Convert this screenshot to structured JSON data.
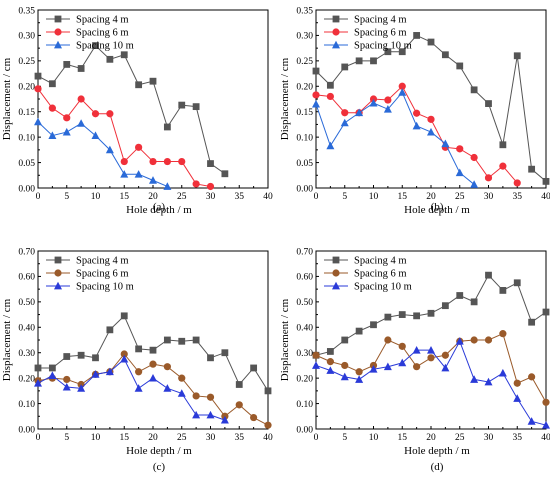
{
  "chart_data": [
    {
      "panel_label": "(a)",
      "type": "line",
      "xlabel": "Hole depth / m",
      "ylabel": "Displacement / cm",
      "xlim": [
        0,
        40
      ],
      "ylim": [
        0,
        0.35
      ],
      "xticks": [
        "0",
        "5",
        "10",
        "15",
        "20",
        "25",
        "30",
        "35",
        "40"
      ],
      "yticks": [
        "0.00",
        "0.05",
        "0.10",
        "0.15",
        "0.20",
        "0.25",
        "0.30",
        "0.35"
      ],
      "legend_position": "top-right",
      "series": [
        {
          "name": "Spacing 4 m",
          "color": "#555555",
          "marker": "square",
          "x": [
            0,
            2.5,
            5,
            7.5,
            10,
            12.5,
            15,
            17.5,
            20,
            22.5,
            25,
            27.5,
            30,
            32.5
          ],
          "y": [
            0.22,
            0.205,
            0.243,
            0.235,
            0.28,
            0.253,
            0.262,
            0.203,
            0.21,
            0.12,
            0.163,
            0.16,
            0.048,
            0.028
          ]
        },
        {
          "name": "Spacing 6 m",
          "color": "#f0303a",
          "marker": "circle",
          "x": [
            0,
            2.5,
            5,
            7.5,
            10,
            12.5,
            15,
            17.5,
            20,
            22.5,
            25,
            27.5,
            30
          ],
          "y": [
            0.195,
            0.157,
            0.138,
            0.175,
            0.146,
            0.146,
            0.052,
            0.08,
            0.052,
            0.052,
            0.052,
            0.008,
            0.003
          ]
        },
        {
          "name": "Spacing 10 m",
          "color": "#2a6ad8",
          "marker": "triangle",
          "x": [
            0,
            2.5,
            5,
            7.5,
            10,
            12.5,
            15,
            17.5,
            20,
            22.5
          ],
          "y": [
            0.13,
            0.103,
            0.11,
            0.127,
            0.103,
            0.075,
            0.027,
            0.027,
            0.015,
            0.003
          ]
        }
      ]
    },
    {
      "panel_label": "(b)",
      "type": "line",
      "xlabel": "Hole depth / m",
      "ylabel": "Displacement / cm",
      "xlim": [
        0,
        40
      ],
      "ylim": [
        0,
        0.35
      ],
      "xticks": [
        "0",
        "5",
        "10",
        "15",
        "20",
        "25",
        "30",
        "35",
        "40"
      ],
      "yticks": [
        "0.00",
        "0.05",
        "0.10",
        "0.15",
        "0.20",
        "0.25",
        "0.30",
        "0.35"
      ],
      "legend_position": "top-right",
      "series": [
        {
          "name": "Spacing 4 m",
          "color": "#555555",
          "marker": "square",
          "x": [
            0,
            2.5,
            5,
            7.5,
            10,
            12.5,
            15,
            17.5,
            20,
            22.5,
            25,
            27.5,
            30,
            32.5,
            35,
            37.5,
            40
          ],
          "y": [
            0.23,
            0.202,
            0.238,
            0.25,
            0.25,
            0.268,
            0.268,
            0.3,
            0.287,
            0.262,
            0.24,
            0.193,
            0.166,
            0.085,
            0.26,
            0.037,
            0.013
          ]
        },
        {
          "name": "Spacing 6 m",
          "color": "#f0303a",
          "marker": "circle",
          "x": [
            0,
            2.5,
            5,
            7.5,
            10,
            12.5,
            15,
            17.5,
            20,
            22.5,
            25,
            27.5,
            30,
            32.5,
            35
          ],
          "y": [
            0.183,
            0.18,
            0.148,
            0.148,
            0.175,
            0.173,
            0.2,
            0.147,
            0.135,
            0.08,
            0.077,
            0.06,
            0.02,
            0.043,
            0.01
          ]
        },
        {
          "name": "Spacing 10 m",
          "color": "#2a6ad8",
          "marker": "triangle",
          "x": [
            0,
            2.5,
            5,
            7.5,
            10,
            12.5,
            15,
            17.5,
            20,
            22.5,
            25,
            27.5
          ],
          "y": [
            0.165,
            0.083,
            0.128,
            0.148,
            0.167,
            0.155,
            0.188,
            0.122,
            0.11,
            0.087,
            0.03,
            0.007
          ]
        }
      ]
    },
    {
      "panel_label": "(c)",
      "type": "line",
      "xlabel": "Hole depth / m",
      "ylabel": "Displacement / cm",
      "xlim": [
        0,
        40
      ],
      "ylim": [
        0,
        0.7
      ],
      "xticks": [
        "0",
        "5",
        "10",
        "15",
        "20",
        "25",
        "30",
        "35",
        "40"
      ],
      "yticks": [
        "0.00",
        "0.10",
        "0.20",
        "0.30",
        "0.40",
        "0.50",
        "0.60",
        "0.70"
      ],
      "legend_position": "top-right",
      "series": [
        {
          "name": "Spacing 4 m",
          "color": "#555555",
          "marker": "square",
          "x": [
            0,
            2.5,
            5,
            7.5,
            10,
            12.5,
            15,
            17.5,
            20,
            22.5,
            25,
            27.5,
            30,
            32.5,
            35,
            37.5,
            40
          ],
          "y": [
            0.24,
            0.24,
            0.285,
            0.29,
            0.28,
            0.39,
            0.445,
            0.315,
            0.31,
            0.35,
            0.345,
            0.35,
            0.28,
            0.3,
            0.175,
            0.24,
            0.15
          ]
        },
        {
          "name": "Spacing 6 m",
          "color": "#9a5a2a",
          "marker": "circle",
          "x": [
            0,
            2.5,
            5,
            7.5,
            10,
            12.5,
            15,
            17.5,
            20,
            22.5,
            25,
            27.5,
            30,
            32.5,
            35,
            37.5,
            40
          ],
          "y": [
            0.19,
            0.2,
            0.195,
            0.175,
            0.215,
            0.225,
            0.295,
            0.225,
            0.255,
            0.245,
            0.2,
            0.13,
            0.125,
            0.05,
            0.095,
            0.045,
            0.015
          ]
        },
        {
          "name": "Spacing 10 m",
          "color": "#2a3ad8",
          "marker": "triangle",
          "x": [
            0,
            2.5,
            5,
            7.5,
            10,
            12.5,
            15,
            17.5,
            20,
            22.5,
            25,
            27.5,
            30,
            32.5
          ],
          "y": [
            0.18,
            0.21,
            0.165,
            0.16,
            0.215,
            0.225,
            0.275,
            0.16,
            0.2,
            0.16,
            0.14,
            0.055,
            0.055,
            0.035
          ]
        }
      ]
    },
    {
      "panel_label": "(d)",
      "type": "line",
      "xlabel": "Hole depth / m",
      "ylabel": "Displacement / cm",
      "xlim": [
        0,
        40
      ],
      "ylim": [
        0,
        0.7
      ],
      "xticks": [
        "0",
        "5",
        "10",
        "15",
        "20",
        "25",
        "30",
        "35",
        "40"
      ],
      "yticks": [
        "0.00",
        "0.10",
        "0.20",
        "0.30",
        "0.40",
        "0.50",
        "0.60",
        "0.70"
      ],
      "legend_position": "top-right",
      "series": [
        {
          "name": "Spacing 4 m",
          "color": "#555555",
          "marker": "square",
          "x": [
            0,
            2.5,
            5,
            7.5,
            10,
            12.5,
            15,
            17.5,
            20,
            22.5,
            25,
            27.5,
            30,
            32.5,
            35,
            37.5,
            40
          ],
          "y": [
            0.29,
            0.305,
            0.35,
            0.385,
            0.41,
            0.44,
            0.45,
            0.445,
            0.455,
            0.485,
            0.525,
            0.5,
            0.605,
            0.545,
            0.575,
            0.42,
            0.46
          ]
        },
        {
          "name": "Spacing 6 m",
          "color": "#9a5a2a",
          "marker": "circle",
          "x": [
            0,
            2.5,
            5,
            7.5,
            10,
            12.5,
            15,
            17.5,
            20,
            22.5,
            25,
            27.5,
            30,
            32.5,
            35,
            37.5,
            40
          ],
          "y": [
            0.29,
            0.265,
            0.25,
            0.225,
            0.25,
            0.35,
            0.325,
            0.245,
            0.28,
            0.29,
            0.345,
            0.35,
            0.35,
            0.375,
            0.18,
            0.205,
            0.105
          ]
        },
        {
          "name": "Spacing 10 m",
          "color": "#2a3ad8",
          "marker": "triangle",
          "x": [
            0,
            2.5,
            5,
            7.5,
            10,
            12.5,
            15,
            17.5,
            20,
            22.5,
            25,
            27.5,
            30,
            32.5,
            35,
            37.5,
            40
          ],
          "y": [
            0.25,
            0.23,
            0.205,
            0.195,
            0.235,
            0.245,
            0.26,
            0.31,
            0.31,
            0.24,
            0.345,
            0.195,
            0.185,
            0.22,
            0.12,
            0.03,
            0.015
          ]
        }
      ]
    }
  ]
}
